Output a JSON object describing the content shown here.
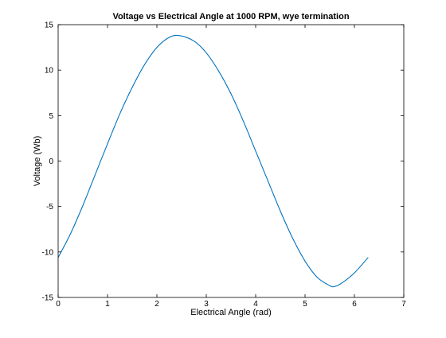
{
  "chart_data": {
    "type": "line",
    "title": "Voltage vs Electrical Angle at 1000 RPM, wye termination",
    "xlabel": "Electrical Angle (rad)",
    "ylabel": "Voltage (Wb)",
    "xlim": [
      0,
      7
    ],
    "ylim": [
      -15,
      15
    ],
    "xticks": [
      0,
      1,
      2,
      3,
      4,
      5,
      6,
      7
    ],
    "yticks": [
      -15,
      -10,
      -5,
      0,
      5,
      10,
      15
    ],
    "grid": false,
    "legend": "none",
    "series": [
      {
        "color": "#0072BD",
        "x": [
          0.0,
          0.25,
          0.5,
          0.75,
          1.0,
          1.25,
          1.5,
          1.75,
          2.0,
          2.25,
          2.45,
          2.75,
          3.0,
          3.25,
          3.5,
          3.75,
          4.0,
          4.25,
          4.5,
          4.75,
          5.0,
          5.25,
          5.5,
          5.6,
          5.75,
          6.0,
          6.28
        ],
        "y": [
          -10.6,
          -8.0,
          -4.9,
          -1.5,
          1.9,
          5.2,
          8.1,
          10.6,
          12.5,
          13.6,
          13.8,
          13.2,
          11.9,
          9.9,
          7.4,
          4.4,
          1.1,
          -2.2,
          -5.5,
          -8.5,
          -11.0,
          -12.8,
          -13.7,
          -13.8,
          -13.4,
          -12.3,
          -10.6
        ]
      }
    ]
  }
}
